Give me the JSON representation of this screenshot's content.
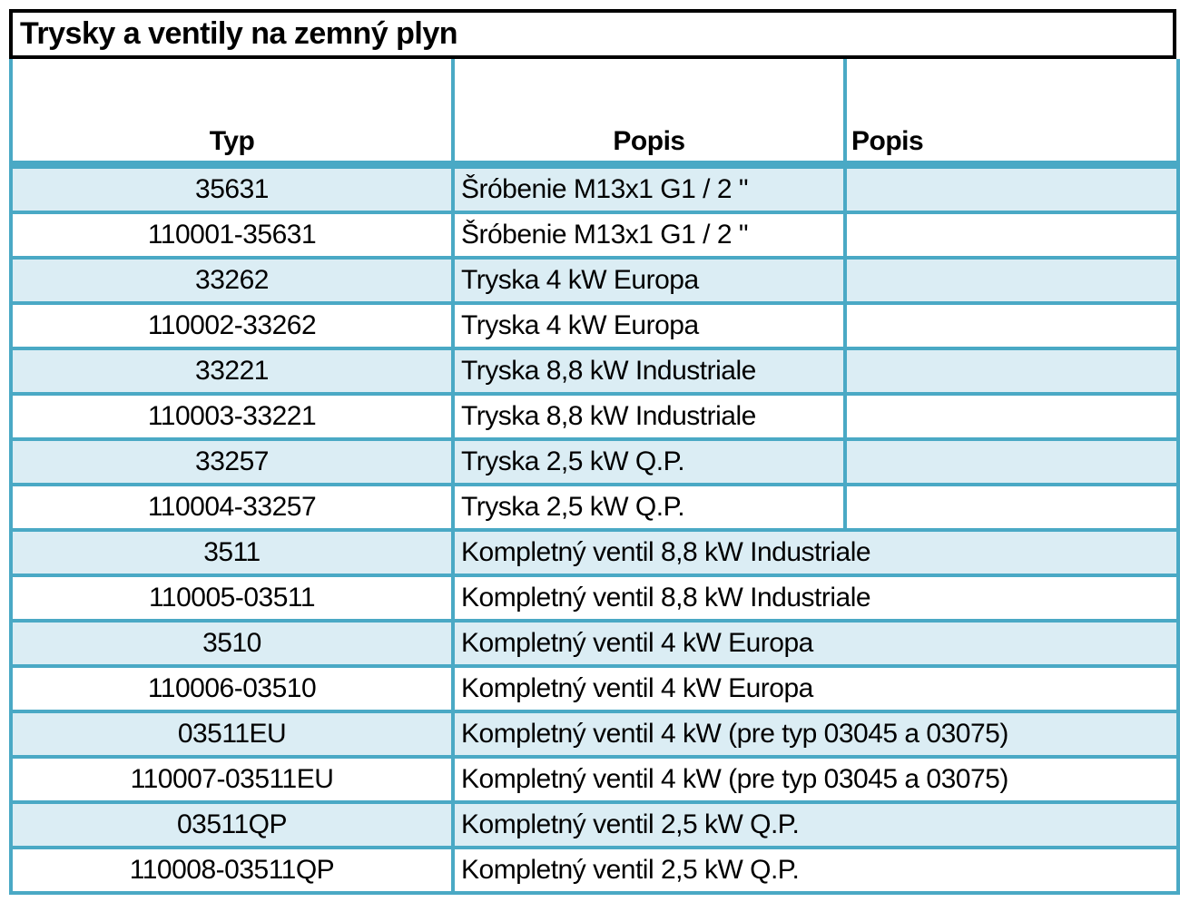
{
  "title": "Trysky a ventily na zemný plyn",
  "colors": {
    "grid_border": "#4AA9C5",
    "row_fill": "#DBEDF4",
    "title_border": "#000000"
  },
  "table": {
    "headers": [
      "Typ",
      "Popis",
      "Popis"
    ],
    "rows": [
      {
        "typ": "35631",
        "popis": "Šróbenie M13x1 G1 / 2 \"",
        "popis2": ""
      },
      {
        "typ": "110001-35631",
        "popis": "Šróbenie M13x1 G1 / 2 \"",
        "popis2": ""
      },
      {
        "typ": "33262",
        "popis": "Tryska 4 kW Europa",
        "popis2": ""
      },
      {
        "typ": "110002-33262",
        "popis": "Tryska 4 kW Europa",
        "popis2": ""
      },
      {
        "typ": "33221",
        "popis": "Tryska 8,8 kW Industriale",
        "popis2": ""
      },
      {
        "typ": "110003-33221",
        "popis": "Tryska 8,8 kW Industriale",
        "popis2": ""
      },
      {
        "typ": "33257",
        "popis": "Tryska 2,5 kW Q.P.",
        "popis2": ""
      },
      {
        "typ": "110004-33257",
        "popis": "Tryska 2,5 kW Q.P.",
        "popis2": ""
      },
      {
        "typ": "3511",
        "popis": "Kompletný ventil 8,8 kW Industriale",
        "popis2": null
      },
      {
        "typ": "110005-03511",
        "popis": "Kompletný ventil 8,8 kW Industriale",
        "popis2": null
      },
      {
        "typ": "3510",
        "popis": "Kompletný ventil 4 kW Europa",
        "popis2": null
      },
      {
        "typ": "110006-03510",
        "popis": "Kompletný ventil 4 kW Europa",
        "popis2": null
      },
      {
        "typ": "03511EU",
        "popis": "Kompletný ventil 4 kW (pre typ 03045 a 03075)",
        "popis2": null
      },
      {
        "typ": "110007-03511EU",
        "popis": "Kompletný ventil 4 kW (pre typ 03045 a 03075)",
        "popis2": null
      },
      {
        "typ": "03511QP",
        "popis": "Kompletný ventil 2,5 kW Q.P.",
        "popis2": null
      },
      {
        "typ": "110008-03511QP",
        "popis": "Kompletný ventil 2,5 kW Q.P.",
        "popis2": null
      }
    ]
  }
}
